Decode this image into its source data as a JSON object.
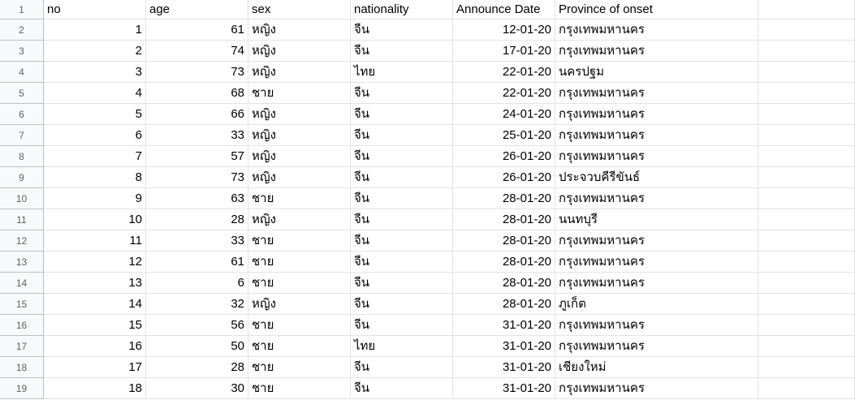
{
  "header": {
    "row_number": "1",
    "columns": [
      "no",
      "age",
      "sex",
      "nationality",
      "Announce Date",
      "Province of onset"
    ]
  },
  "rows": [
    {
      "n": "2",
      "no": "1",
      "age": "61",
      "sex": "หญิง",
      "nationality": "จีน",
      "date": "12-01-20",
      "province": "กรุงเทพมหานคร"
    },
    {
      "n": "3",
      "no": "2",
      "age": "74",
      "sex": "หญิง",
      "nationality": "จีน",
      "date": "17-01-20",
      "province": "กรุงเทพมหานคร"
    },
    {
      "n": "4",
      "no": "3",
      "age": "73",
      "sex": "หญิง",
      "nationality": "ไทย",
      "date": "22-01-20",
      "province": "นครปฐม"
    },
    {
      "n": "5",
      "no": "4",
      "age": "68",
      "sex": "ชาย",
      "nationality": "จีน",
      "date": "22-01-20",
      "province": "กรุงเทพมหานคร"
    },
    {
      "n": "6",
      "no": "5",
      "age": "66",
      "sex": "หญิง",
      "nationality": "จีน",
      "date": "24-01-20",
      "province": "กรุงเทพมหานคร"
    },
    {
      "n": "7",
      "no": "6",
      "age": "33",
      "sex": "หญิง",
      "nationality": "จีน",
      "date": "25-01-20",
      "province": "กรุงเทพมหานคร"
    },
    {
      "n": "8",
      "no": "7",
      "age": "57",
      "sex": "หญิง",
      "nationality": "จีน",
      "date": "26-01-20",
      "province": "กรุงเทพมหานคร"
    },
    {
      "n": "9",
      "no": "8",
      "age": "73",
      "sex": "หญิง",
      "nationality": "จีน",
      "date": "26-01-20",
      "province": "ประจวบคีรีขันธ์"
    },
    {
      "n": "10",
      "no": "9",
      "age": "63",
      "sex": "ชาย",
      "nationality": "จีน",
      "date": "28-01-20",
      "province": "กรุงเทพมหานคร"
    },
    {
      "n": "11",
      "no": "10",
      "age": "28",
      "sex": "หญิง",
      "nationality": "จีน",
      "date": "28-01-20",
      "province": "นนทบุรี"
    },
    {
      "n": "12",
      "no": "11",
      "age": "33",
      "sex": "ชาย",
      "nationality": "จีน",
      "date": "28-01-20",
      "province": "กรุงเทพมหานคร"
    },
    {
      "n": "13",
      "no": "12",
      "age": "61",
      "sex": "ชาย",
      "nationality": "จีน",
      "date": "28-01-20",
      "province": "กรุงเทพมหานคร"
    },
    {
      "n": "14",
      "no": "13",
      "age": "6",
      "sex": "ชาย",
      "nationality": "จีน",
      "date": "28-01-20",
      "province": "กรุงเทพมหานคร"
    },
    {
      "n": "15",
      "no": "14",
      "age": "32",
      "sex": "หญิง",
      "nationality": "จีน",
      "date": "28-01-20",
      "province": "ภูเก็ต"
    },
    {
      "n": "16",
      "no": "15",
      "age": "56",
      "sex": "ชาย",
      "nationality": "จีน",
      "date": "31-01-20",
      "province": "กรุงเทพมหานคร"
    },
    {
      "n": "17",
      "no": "16",
      "age": "50",
      "sex": "ชาย",
      "nationality": "ไทย",
      "date": "31-01-20",
      "province": "กรุงเทพมหานคร"
    },
    {
      "n": "18",
      "no": "17",
      "age": "28",
      "sex": "ชาย",
      "nationality": "จีน",
      "date": "31-01-20",
      "province": "เชียงใหม่"
    },
    {
      "n": "19",
      "no": "18",
      "age": "30",
      "sex": "ชาย",
      "nationality": "จีน",
      "date": "31-01-20",
      "province": "กรุงเทพมหานคร"
    }
  ]
}
